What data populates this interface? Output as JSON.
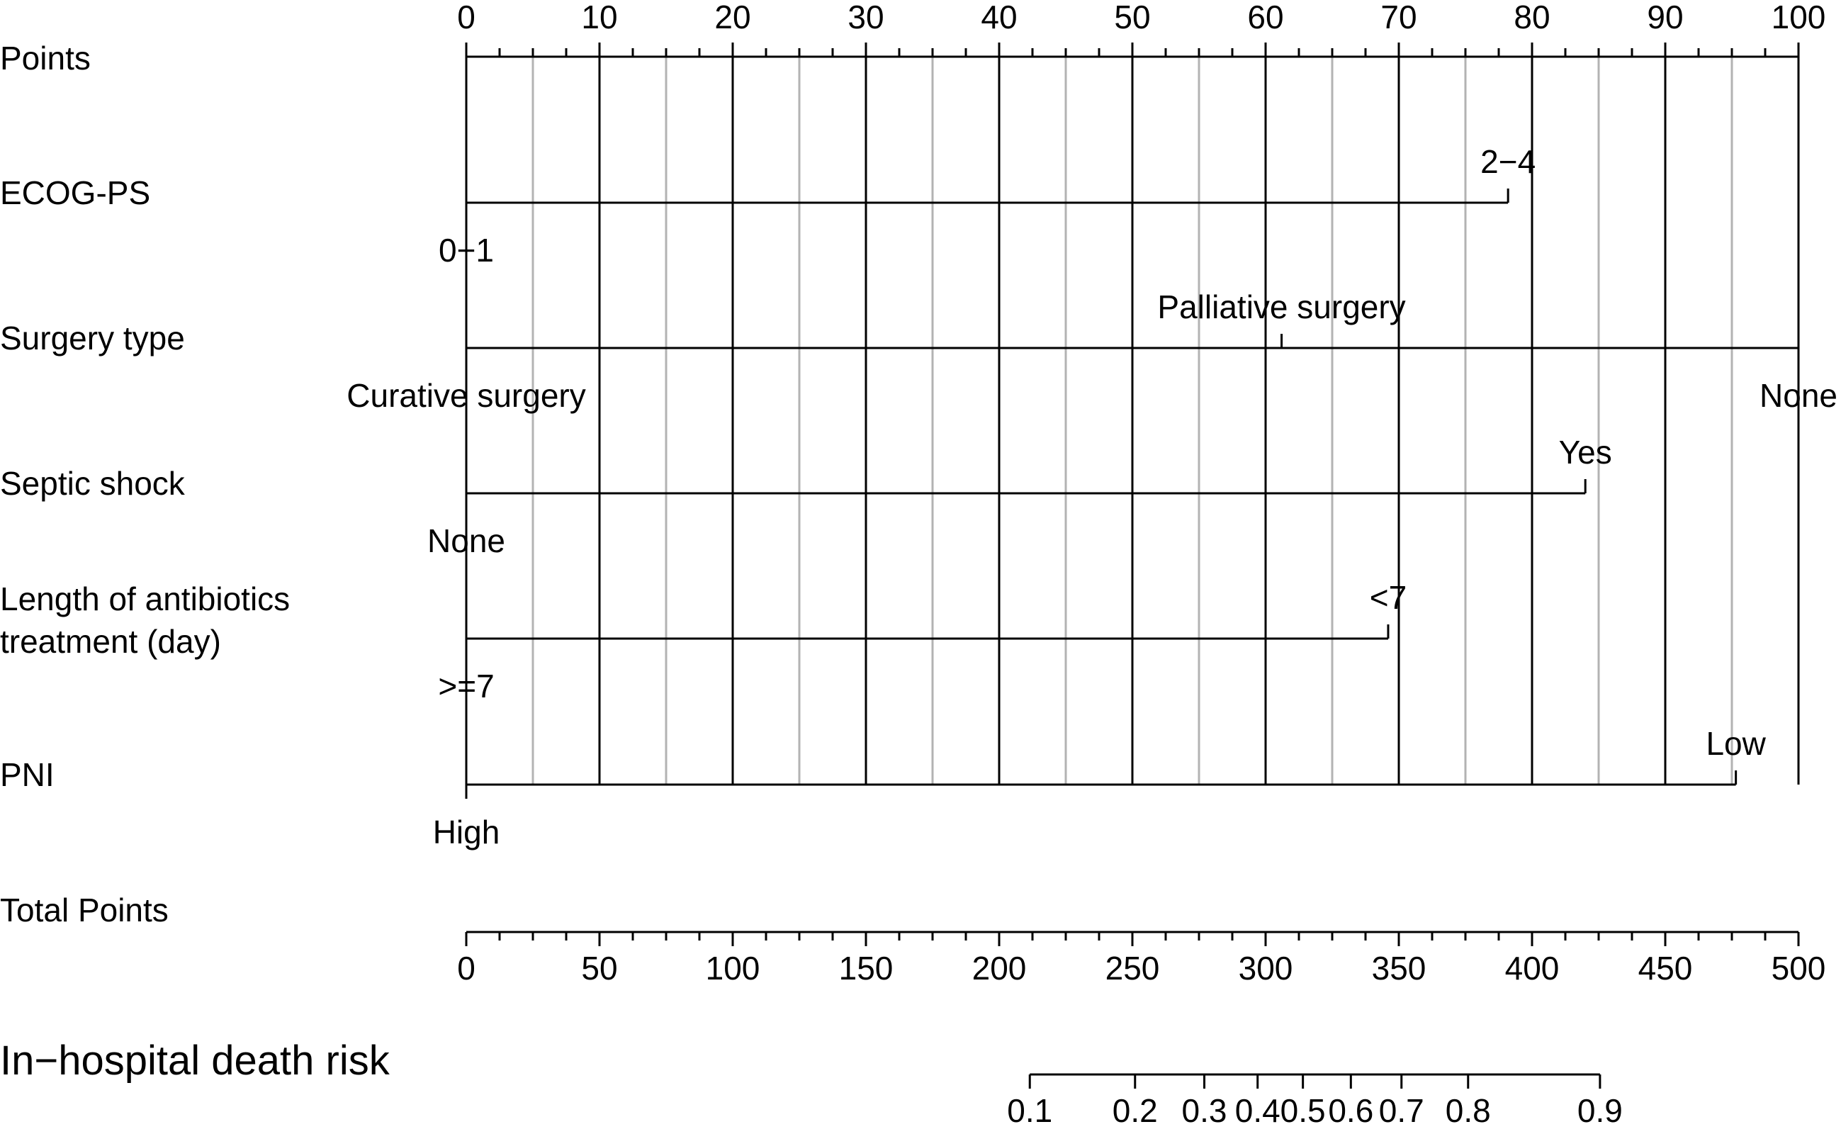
{
  "chart_data": {
    "type": "nomogram",
    "points_axis": {
      "label": "Points",
      "range": [
        0,
        100
      ],
      "tick_labels": [
        "0",
        "10",
        "20",
        "30",
        "40",
        "50",
        "60",
        "70",
        "80",
        "90",
        "100"
      ],
      "minor_step": 2.5
    },
    "predictors": [
      {
        "label": "ECOG-PS",
        "levels": [
          {
            "text": "0−1",
            "points": 0
          },
          {
            "text": "2−4",
            "points": 78.2
          }
        ]
      },
      {
        "label": "Surgery type",
        "levels": [
          {
            "text": "Curative surgery",
            "points": 0
          },
          {
            "text": "Palliative surgery",
            "points": 61.2
          },
          {
            "text": "None",
            "points": 100
          }
        ]
      },
      {
        "label": "Septic shock",
        "levels": [
          {
            "text": "None",
            "points": 0
          },
          {
            "text": "Yes",
            "points": 84
          }
        ]
      },
      {
        "label": "Length of antibiotics treatment (day)",
        "label_lines": [
          "Length of antibiotics",
          "treatment (day)"
        ],
        "levels": [
          {
            "text": ">=7",
            "points": 0
          },
          {
            "text": "<7",
            "points": 69.2
          }
        ]
      },
      {
        "label": "PNI",
        "levels": [
          {
            "text": "High",
            "points": 0
          },
          {
            "text": "Low",
            "points": 95.3
          }
        ]
      }
    ],
    "total_points_axis": {
      "label": "Total Points",
      "range": [
        0,
        500
      ],
      "tick_labels": [
        "0",
        "50",
        "100",
        "150",
        "200",
        "250",
        "300",
        "350",
        "400",
        "450",
        "500"
      ],
      "minor_step": 12.5
    },
    "risk_axis": {
      "label": "In−hospital death risk",
      "ticks": [
        {
          "label": "0.1",
          "total_points": 211.5
        },
        {
          "label": "0.2",
          "total_points": 251
        },
        {
          "label": "0.3",
          "total_points": 277
        },
        {
          "label": "0.4",
          "total_points": 297
        },
        {
          "label": "0.5",
          "total_points": 314
        },
        {
          "label": "0.6",
          "total_points": 332
        },
        {
          "label": "0.7",
          "total_points": 351
        },
        {
          "label": "0.8",
          "total_points": 376
        },
        {
          "label": "0.9",
          "total_points": 425.5
        }
      ]
    }
  }
}
